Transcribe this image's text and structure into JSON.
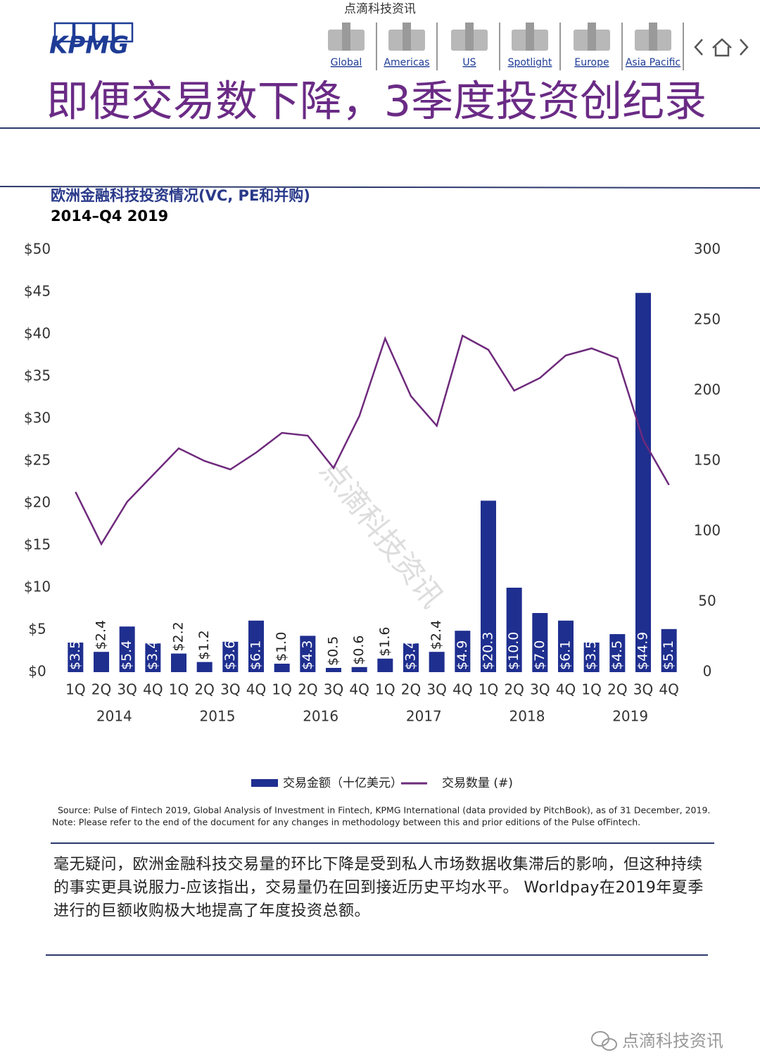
{
  "header": {
    "site": "点滴科技资讯",
    "logo": "KPMG",
    "nav": [
      "Global",
      "Americas",
      "US",
      "Spotlight",
      "Europe",
      "Asia Pacific"
    ]
  },
  "title": "即便交易数下降，3季度投资创纪录",
  "chart_data": {
    "type": "bar-line",
    "title": "欧洲金融科技投资情况(VC, PE和并购)",
    "subtitle": "2014–Q4 2019",
    "categories": [
      "1Q",
      "2Q",
      "3Q",
      "4Q",
      "1Q",
      "2Q",
      "3Q",
      "4Q",
      "1Q",
      "2Q",
      "3Q",
      "4Q",
      "1Q",
      "2Q",
      "3Q",
      "4Q",
      "1Q",
      "2Q",
      "3Q",
      "4Q",
      "1Q",
      "2Q",
      "3Q",
      "4Q"
    ],
    "groups": [
      "2014",
      "2015",
      "2016",
      "2017",
      "2018",
      "2019"
    ],
    "series": [
      {
        "name": "交易金额（十亿美元）",
        "color": "#1f2f8f",
        "axis": "y",
        "values": [
          3.5,
          2.4,
          5.4,
          3.4,
          2.2,
          1.2,
          3.6,
          6.1,
          1.0,
          4.3,
          0.5,
          0.6,
          1.6,
          3.4,
          2.4,
          4.9,
          20.3,
          10.0,
          7.0,
          6.1,
          3.5,
          4.5,
          44.9,
          5.1
        ],
        "value_labels": [
          "$3.5",
          "$2.4",
          "$5.4",
          "$3.4",
          "$2.2",
          "$1.2",
          "$3.6",
          "$6.1",
          "$1.0",
          "$4.3",
          "$0.5",
          "$0.6",
          "$1.6",
          "$3.4",
          "$2.4",
          "$4.9",
          "$20.3",
          "$10.0",
          "$7.0",
          "$6.1",
          "$3.5",
          "$4.5",
          "$44.9",
          "$5.1"
        ]
      },
      {
        "name": "交易数量 (#)",
        "color": "#6e2a7c",
        "axis": "y2",
        "values": [
          128,
          91,
          121,
          140,
          159,
          150,
          144,
          156,
          170,
          168,
          145,
          182,
          237,
          196,
          175,
          239,
          229,
          200,
          209,
          225,
          230,
          223,
          165,
          133
        ]
      }
    ],
    "ylim": [
      0,
      50
    ],
    "yticks": [
      {
        "value": 0,
        "label": "$0"
      },
      {
        "value": 5,
        "label": "$5"
      },
      {
        "value": 10,
        "label": "$10"
      },
      {
        "value": 15,
        "label": "$15"
      },
      {
        "value": 20,
        "label": "$20"
      },
      {
        "value": 25,
        "label": "$25"
      },
      {
        "value": 30,
        "label": "$30"
      },
      {
        "value": 35,
        "label": "$35"
      },
      {
        "value": 40,
        "label": "$40"
      },
      {
        "value": 45,
        "label": "$45"
      },
      {
        "value": 50,
        "label": "$50"
      }
    ],
    "y2lim": [
      0,
      300
    ],
    "y2ticks": [
      0,
      50,
      100,
      150,
      200,
      250,
      300
    ],
    "grid": false
  },
  "source": "Source: Pulse of Fintech 2019, Global Analysis of Investment in Fintech, KPMG International (data provided by PitchBook), as of 31 December, 2019.",
  "note": "Note: Please refer to the end of the document for any changes in methodology between this and prior editions of the Pulse ofFintech.",
  "body": "毫无疑问，欧洲金融科技交易量的环比下降是受到私人市场数据收集滞后的影响，但这种持续的事实更具说服力-应该指出，交易量仍在回到接近历史平均水平。 Worldpay在2019年夏季进行的巨额收购极大地提高了年度投资总额。",
  "watermark": "点滴科技资讯",
  "footer": "点滴科技资讯"
}
